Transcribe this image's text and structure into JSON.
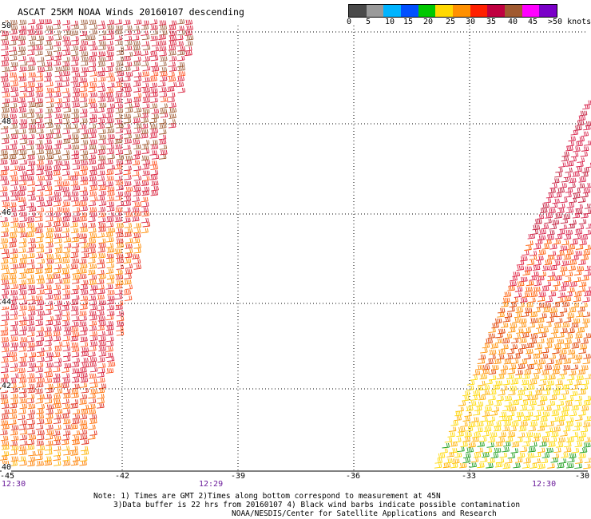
{
  "title": "ASCAT 25KM NOAA Winds 20160107 descending",
  "colorbar": {
    "labels": [
      "0",
      "5",
      "10",
      "15",
      "20",
      "25",
      "30",
      "35",
      "40",
      "45",
      ">50 knots"
    ],
    "colors": [
      "#4a4a4a",
      "#9a9a9a",
      "#00b4ff",
      "#0050ff",
      "#00c800",
      "#ffd800",
      "#ff9000",
      "#ff2000",
      "#c00040",
      "#a05a30",
      "#ff00ff",
      "#7a00c8"
    ]
  },
  "map": {
    "lat_labels": [
      "50",
      "48",
      "46",
      "44",
      "42",
      "40"
    ],
    "lon_labels": [
      "-45",
      "-42",
      "-39",
      "-36",
      "-33",
      "-30"
    ],
    "time_labels": [
      "12:30",
      "12:29",
      "12:30"
    ]
  },
  "notes": [
    "Note: 1) Times are GMT 2)Times along bottom correspond to measurement at 45N",
    "3)Data buffer is 22 hrs from 20160107 4) Black wind barbs indicate possible contamination",
    "NOAA/NESDIS/Center for Satellite Applications and Research"
  ]
}
